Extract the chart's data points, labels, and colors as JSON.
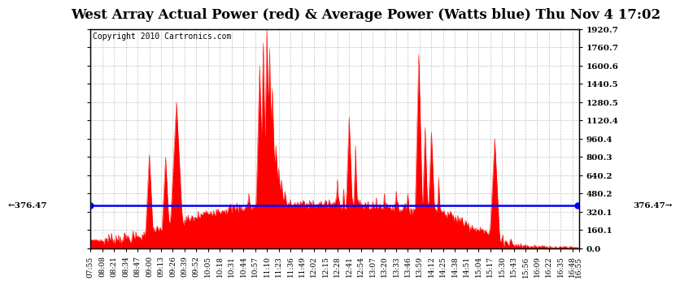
{
  "title": "West Array Actual Power (red) & Average Power (Watts blue) Thu Nov 4 17:02",
  "copyright": "Copyright 2010 Cartronics.com",
  "average_power": 376.47,
  "y_max": 1920.7,
  "y_min": 0.0,
  "y_ticks": [
    0.0,
    160.1,
    320.1,
    480.2,
    640.2,
    800.3,
    960.4,
    1120.4,
    1280.5,
    1440.5,
    1600.6,
    1760.7,
    1920.7
  ],
  "background_color": "#ffffff",
  "plot_bg_color": "#ffffff",
  "grid_color": "#b0b0b0",
  "fill_color": "#ff0000",
  "avg_line_color": "#0000ff",
  "title_fontsize": 12,
  "copyright_fontsize": 7,
  "x_labels": [
    "07:55",
    "08:08",
    "08:21",
    "08:34",
    "08:47",
    "09:00",
    "09:13",
    "09:26",
    "09:39",
    "09:52",
    "10:05",
    "10:18",
    "10:31",
    "10:44",
    "10:57",
    "11:10",
    "11:23",
    "11:36",
    "11:49",
    "12:02",
    "12:15",
    "12:28",
    "12:41",
    "12:54",
    "13:07",
    "13:20",
    "13:33",
    "13:46",
    "13:59",
    "14:12",
    "14:25",
    "14:38",
    "14:51",
    "15:04",
    "15:17",
    "15:30",
    "15:43",
    "15:56",
    "16:09",
    "16:22",
    "16:35",
    "16:48",
    "16:55"
  ]
}
